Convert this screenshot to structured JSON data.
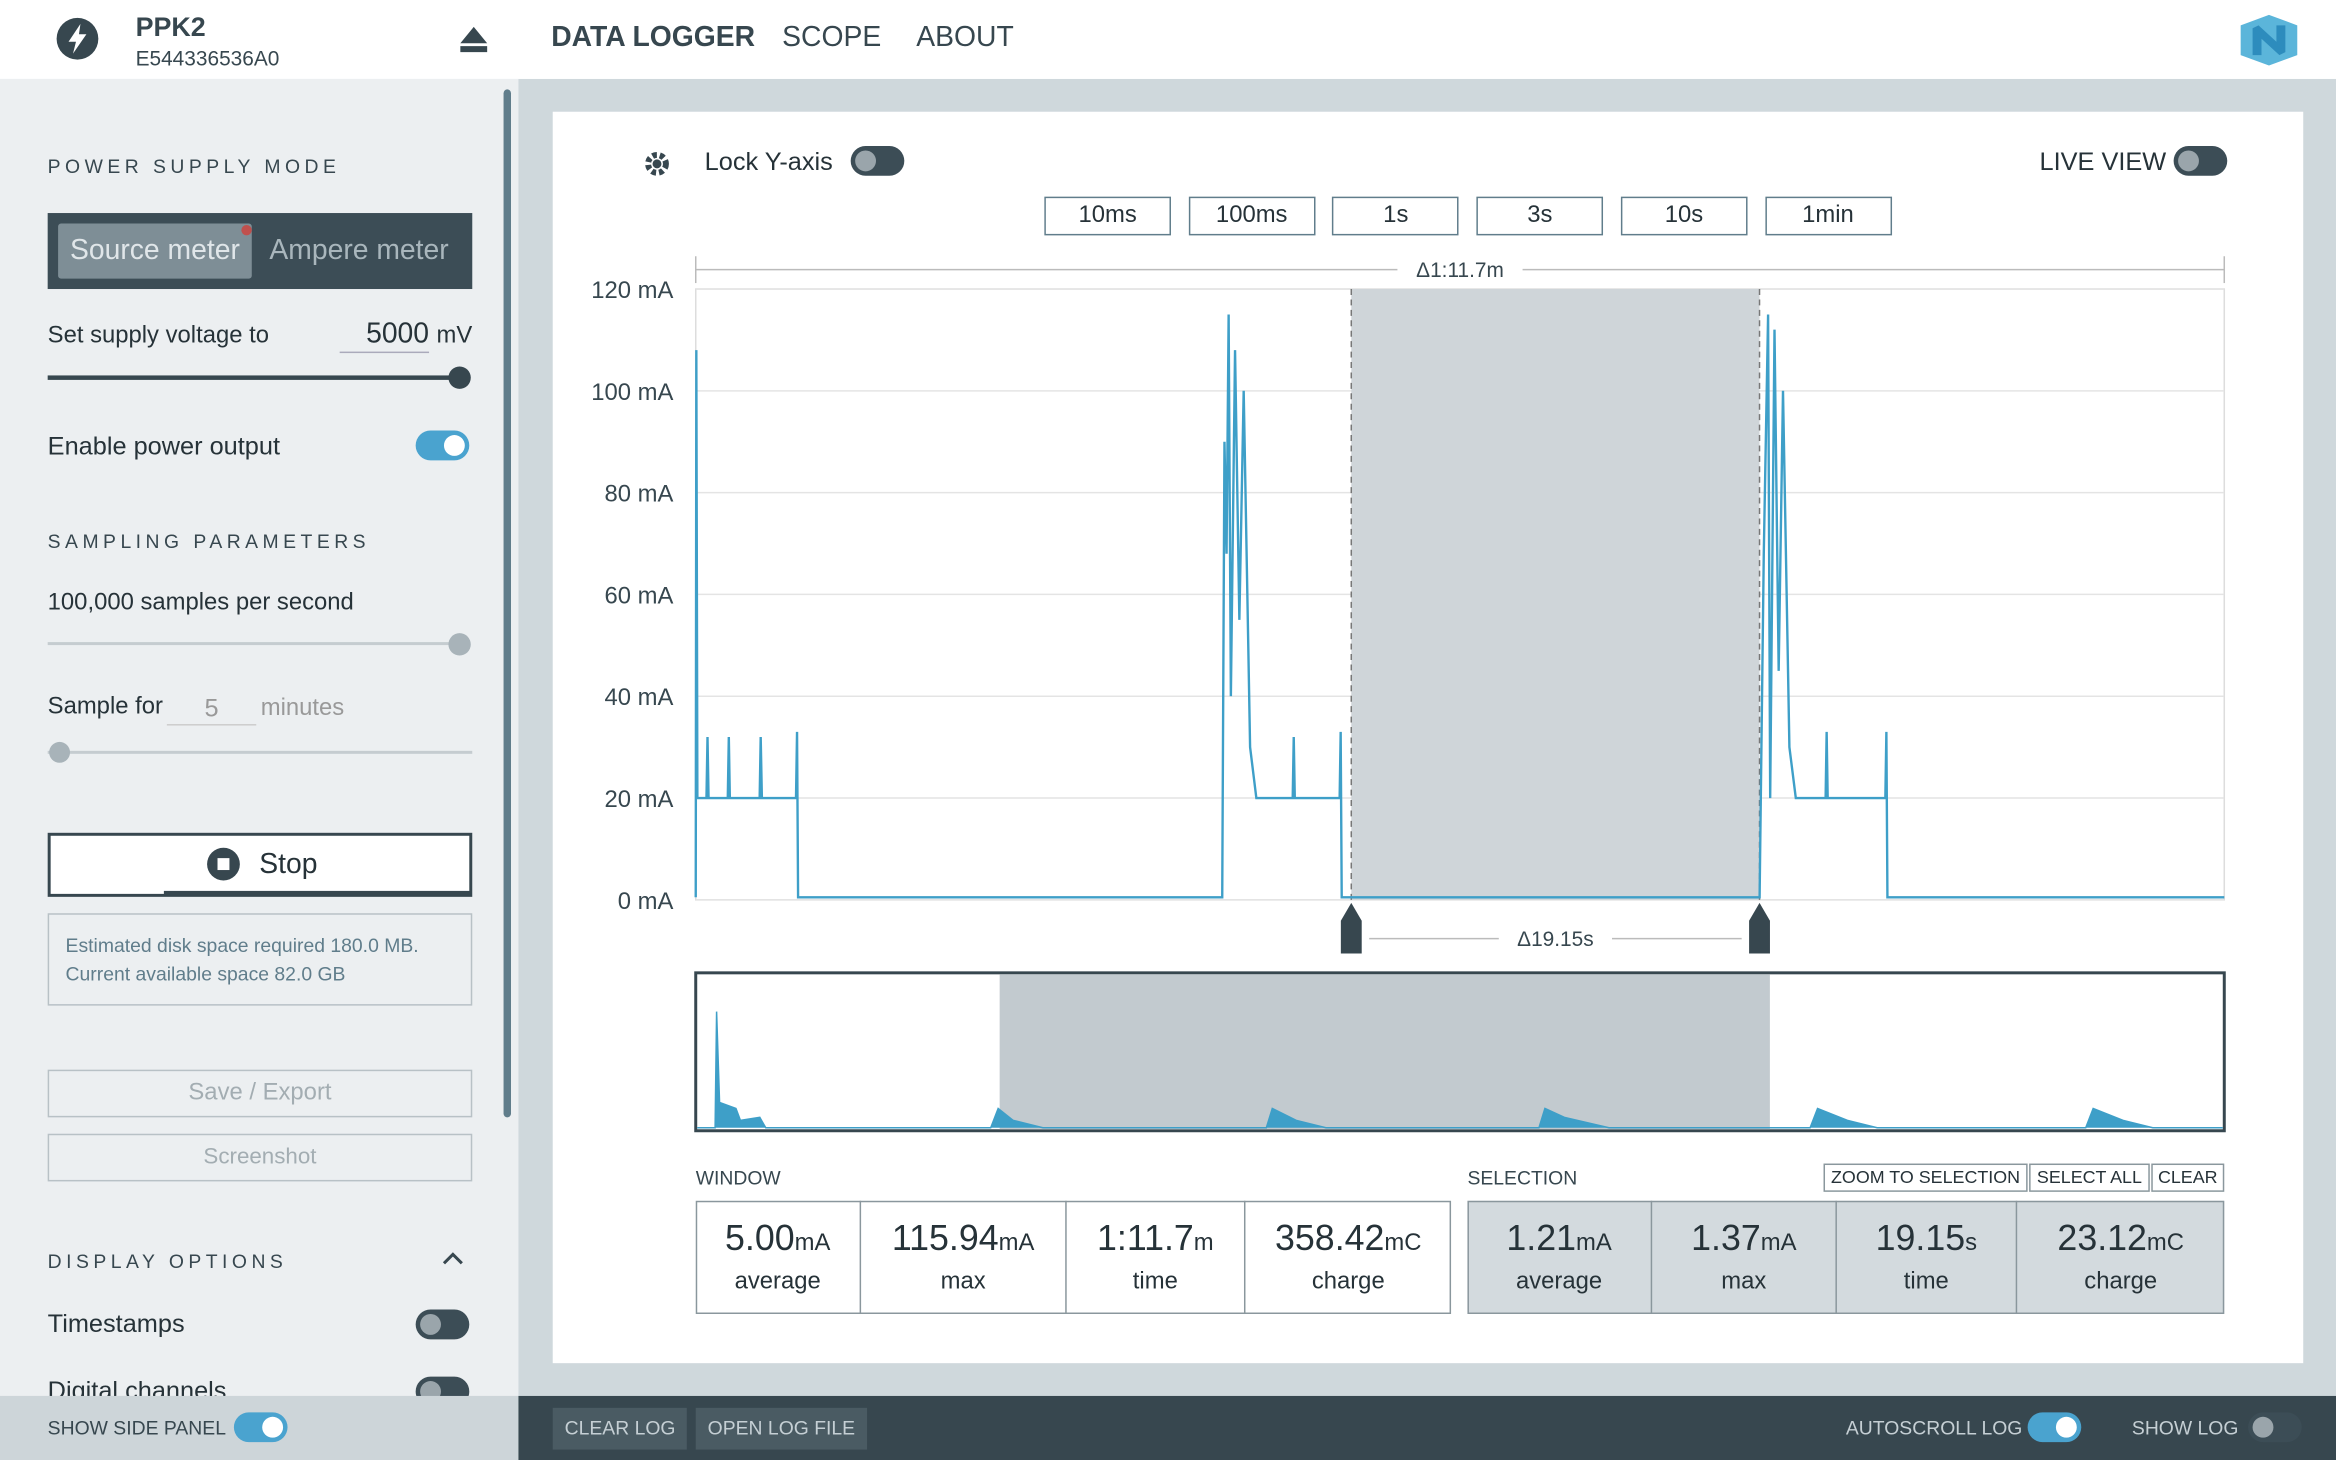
{
  "device": {
    "name": "PPK2",
    "serial": "E544336536A0"
  },
  "nav": [
    "DATA LOGGER",
    "SCOPE",
    "ABOUT"
  ],
  "sidebar": {
    "power_title": "POWER SUPPLY MODE",
    "modes": [
      "Source meter",
      "Ampere meter"
    ],
    "voltage_label": "Set supply voltage to",
    "voltage_value": "5000",
    "voltage_unit": "mV",
    "enable_power": "Enable power output",
    "sampling_title": "SAMPLING PARAMETERS",
    "sample_rate": "100,000 samples per second",
    "sample_for": "Sample for",
    "sample_for_value": "5",
    "sample_for_unit": "minutes",
    "stop": "Stop",
    "disk_info": [
      "Estimated disk space required 180.0 MB.",
      "Current available space 82.0 GB"
    ],
    "save": "Save / Export",
    "screenshot": "Screenshot",
    "display_title": "DISPLAY OPTIONS",
    "timestamps": "Timestamps",
    "digital": "Digital channels"
  },
  "controls": {
    "lock_y": "Lock Y-axis",
    "live_view": "LIVE VIEW",
    "windows": [
      "10ms",
      "100ms",
      "1s",
      "3s",
      "10s",
      "1min"
    ]
  },
  "chart_data": {
    "type": "line",
    "color": "#3e9fc8",
    "window_delta": "Δ1:11.7m",
    "selection_delta": "Δ19.15s",
    "xlim": [
      0,
      71.7
    ],
    "ylim": [
      0,
      120
    ],
    "yticks": [
      {
        "value": 0,
        "label": "0 mA"
      },
      {
        "value": 20,
        "label": "20 mA"
      },
      {
        "value": 40,
        "label": "40 mA"
      },
      {
        "value": 60,
        "label": "60 mA"
      },
      {
        "value": 80,
        "label": "80 mA"
      },
      {
        "value": 100,
        "label": "100 mA"
      },
      {
        "value": 120,
        "label": "120 mA"
      }
    ],
    "grid": true,
    "selection": [
      30.75,
      49.9
    ],
    "x": [
      0,
      0.03,
      0.08,
      0.5,
      0.55,
      0.6,
      1.5,
      1.55,
      1.6,
      3.0,
      3.05,
      3.1,
      4.7,
      4.75,
      4.8,
      24.7,
      24.8,
      24.9,
      25.0,
      25.1,
      25.3,
      25.5,
      25.7,
      26.0,
      26.3,
      28.0,
      28.05,
      28.1,
      30.2,
      30.25,
      30.3,
      49.9,
      50.1,
      50.3,
      50.4,
      50.6,
      50.8,
      51.0,
      51.3,
      51.6,
      53.0,
      53.05,
      53.1,
      55.8,
      55.85,
      55.9,
      71.7
    ],
    "values": [
      0.5,
      108,
      20,
      20,
      32,
      20,
      20,
      32,
      20,
      20,
      32,
      20,
      20,
      33,
      0.5,
      0.5,
      90,
      68,
      115,
      40,
      108,
      55,
      100,
      30,
      20,
      20,
      32,
      20,
      20,
      33,
      0.5,
      0.5,
      68,
      115,
      20,
      112,
      45,
      100,
      30,
      20,
      20,
      33,
      20,
      20,
      33,
      0.5,
      0.5
    ]
  },
  "window_stats": {
    "title": "WINDOW",
    "items": [
      {
        "value": "5.00",
        "unit": "mA",
        "label": "average"
      },
      {
        "value": "115.94",
        "unit": "mA",
        "label": "max"
      },
      {
        "value": "1:11.7",
        "unit": "m",
        "label": "time"
      },
      {
        "value": "358.42",
        "unit": "mC",
        "label": "charge"
      }
    ]
  },
  "selection_stats": {
    "title": "SELECTION",
    "actions": [
      "ZOOM TO SELECTION",
      "SELECT ALL",
      "CLEAR"
    ],
    "items": [
      {
        "value": "1.21",
        "unit": "mA",
        "label": "average"
      },
      {
        "value": "1.37",
        "unit": "mA",
        "label": "max"
      },
      {
        "value": "19.15",
        "unit": "s",
        "label": "time"
      },
      {
        "value": "23.12",
        "unit": "mC",
        "label": "charge"
      }
    ]
  },
  "footer": {
    "show_side_panel": "SHOW SIDE PANEL",
    "clear_log": "CLEAR LOG",
    "open_log": "OPEN LOG FILE",
    "autoscroll": "AUTOSCROLL LOG",
    "show_log": "SHOW LOG"
  }
}
